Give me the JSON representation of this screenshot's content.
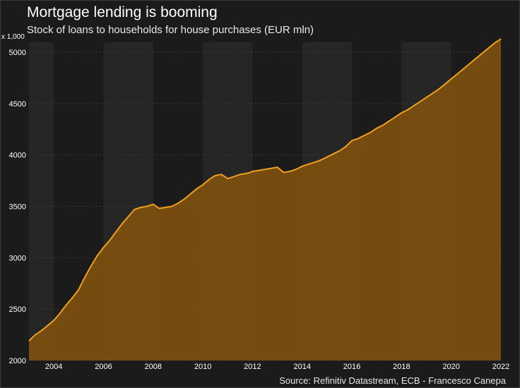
{
  "header": {
    "title": "Mortgage lending is booming",
    "subtitle": "Stock of loans to households for house purchases (EUR mln)"
  },
  "footer": {
    "source": "Source: Refinitiv Datastream, ECB - Francesco Canepa"
  },
  "colors": {
    "background": "#1b1b1b",
    "band": "#262626",
    "line": "#f0a020",
    "area": "#7a4e10",
    "grid": "#3c3c3c",
    "text": "#ffffff"
  },
  "chart_data": {
    "type": "area",
    "title": "Mortgage lending is booming",
    "subtitle": "Stock of loans to households for house purchases (EUR mln)",
    "y_unit_label": "x 1,000",
    "xlim": [
      2003.0,
      2022.0
    ],
    "ylim": [
      2000,
      5000
    ],
    "x_ticks": [
      2004,
      2006,
      2008,
      2010,
      2012,
      2014,
      2016,
      2018,
      2020,
      2022
    ],
    "y_ticks": [
      2000,
      2500,
      3000,
      3500,
      4000,
      4500,
      5000
    ],
    "grid": true,
    "series": [
      {
        "x": [
          2003.0,
          2003.25,
          2003.5,
          2003.75,
          2004.0,
          2004.25,
          2004.5,
          2004.75,
          2005.0,
          2005.25,
          2005.5,
          2005.75,
          2006.0,
          2006.25,
          2006.5,
          2006.75,
          2007.0,
          2007.25,
          2007.5,
          2007.75,
          2008.0,
          2008.25,
          2008.5,
          2008.75,
          2009.0,
          2009.25,
          2009.5,
          2009.75,
          2010.0,
          2010.25,
          2010.5,
          2010.75,
          2011.0,
          2011.25,
          2011.5,
          2011.75,
          2011.9,
          2012.0,
          2012.25,
          2012.5,
          2012.75,
          2013.0,
          2013.25,
          2013.5,
          2013.75,
          2014.0,
          2014.25,
          2014.5,
          2014.75,
          2015.0,
          2015.25,
          2015.5,
          2015.75,
          2016.0,
          2016.25,
          2016.5,
          2016.75,
          2017.0,
          2017.25,
          2017.5,
          2017.75,
          2018.0,
          2018.25,
          2018.5,
          2018.75,
          2019.0,
          2019.25,
          2019.5,
          2019.75,
          2020.0,
          2020.25,
          2020.5,
          2020.75,
          2021.0,
          2021.25,
          2021.5,
          2021.75,
          2022.0
        ],
        "values": [
          2190,
          2250,
          2290,
          2340,
          2390,
          2460,
          2540,
          2610,
          2690,
          2810,
          2920,
          3020,
          3100,
          3170,
          3250,
          3330,
          3400,
          3470,
          3490,
          3500,
          3520,
          3480,
          3490,
          3500,
          3530,
          3570,
          3620,
          3670,
          3710,
          3760,
          3800,
          3810,
          3770,
          3790,
          3810,
          3820,
          3830,
          3840,
          3850,
          3860,
          3870,
          3880,
          3830,
          3840,
          3860,
          3890,
          3910,
          3930,
          3950,
          3980,
          4010,
          4040,
          4080,
          4140,
          4160,
          4190,
          4220,
          4260,
          4290,
          4330,
          4370,
          4410,
          4440,
          4480,
          4520,
          4560,
          4600,
          4640,
          4690,
          4740,
          4790,
          4840,
          4890,
          4940,
          4990,
          5040,
          5090,
          5130
        ]
      }
    ],
    "source": "Source: Refinitiv Datastream, ECB - Francesco Canepa"
  }
}
